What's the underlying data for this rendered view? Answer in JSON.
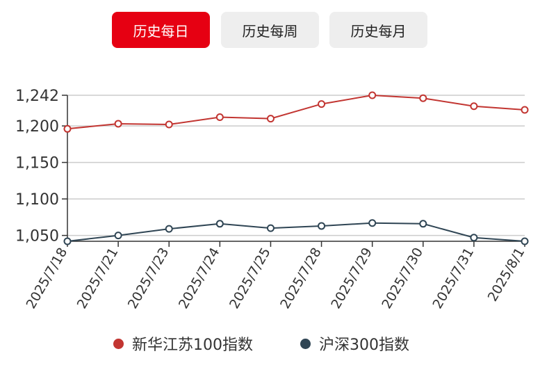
{
  "tabs": [
    {
      "label": "历史每日",
      "active": true
    },
    {
      "label": "历史每周",
      "active": false
    },
    {
      "label": "历史每月",
      "active": false
    }
  ],
  "colors": {
    "accent": "#e60012",
    "series_0": "#c23531",
    "series_1": "#2f4554",
    "grid": "#cccccc",
    "axis": "#333333"
  },
  "chart_data": {
    "type": "line",
    "title": "",
    "xlabel": "",
    "ylabel": "",
    "x": [
      "2025/7/18",
      "2025/7/21",
      "2025/7/23",
      "2025/7/24",
      "2025/7/25",
      "2025/7/28",
      "2025/7/29",
      "2025/7/30",
      "2025/7/31",
      "2025/8/1"
    ],
    "yticks": [
      "1,242",
      "1,200",
      "1,150",
      "1,100",
      "1,050"
    ],
    "ylim": [
      1042,
      1242
    ],
    "grid": true,
    "legend_position": "bottom",
    "series": [
      {
        "name": "新华江苏100指数",
        "values": [
          1196,
          1203,
          1202,
          1212,
          1210,
          1230,
          1242,
          1238,
          1227,
          1222
        ]
      },
      {
        "name": "沪深300指数",
        "values": [
          1042,
          1050,
          1059,
          1066,
          1060,
          1063,
          1067,
          1066,
          1047,
          1042
        ]
      }
    ]
  }
}
